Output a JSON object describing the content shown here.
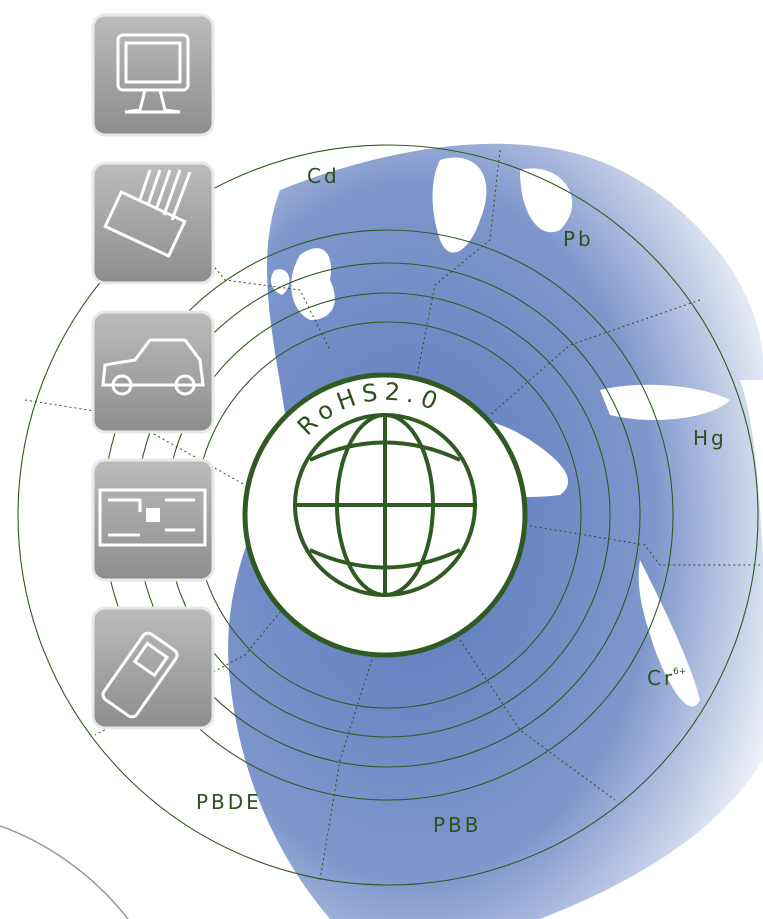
{
  "substances": [
    {
      "symbol": "Cd"
    },
    {
      "symbol": "Pb"
    },
    {
      "symbol": "Hg"
    },
    {
      "symbol": "Cr",
      "superscript": "6+"
    },
    {
      "symbol": "PBB"
    },
    {
      "symbol": "PBDE"
    }
  ],
  "emblem": {
    "text": "RoHS2.0"
  }
}
